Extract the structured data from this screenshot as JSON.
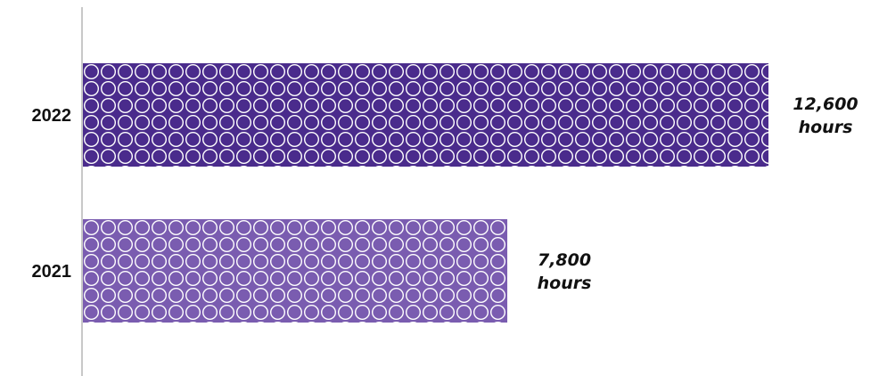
{
  "chart_data": {
    "type": "bar",
    "orientation": "horizontal",
    "categories": [
      "2022",
      "2021"
    ],
    "values": [
      12600,
      7800
    ],
    "unit": "hours",
    "data_labels": [
      [
        "12,600",
        "hours"
      ],
      [
        "7,800",
        "hours"
      ]
    ],
    "xlim": [
      0,
      12600
    ],
    "grid": false,
    "legend": "none",
    "colors": {
      "bars": [
        "#4a2b8c",
        "#7a5cb0"
      ],
      "pattern_stroke": "#ffffff",
      "axis": "#c8c8c8",
      "text": "#111111"
    }
  }
}
